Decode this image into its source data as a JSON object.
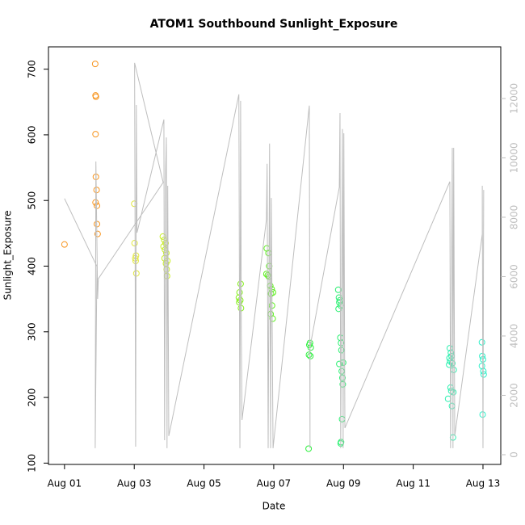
{
  "chart_data": {
    "type": "scatter",
    "title": "ATOM1 Southbound Sunlight_Exposure",
    "x_label": "Date",
    "y_label": "Sunlight_Exposure",
    "xlim": [
      0.54,
      13.51
    ],
    "ylim": [
      98,
      734
    ],
    "y2lim": [
      -327,
      13740
    ],
    "xticks": [
      {
        "value": 1,
        "label": "Aug 01"
      },
      {
        "value": 3,
        "label": "Aug 03"
      },
      {
        "value": 5,
        "label": "Aug 05"
      },
      {
        "value": 7,
        "label": "Aug 07"
      },
      {
        "value": 9,
        "label": "Aug 09"
      },
      {
        "value": 11,
        "label": "Aug 11"
      },
      {
        "value": 13,
        "label": "Aug 13"
      }
    ],
    "yticks": [
      100,
      200,
      300,
      400,
      500,
      600,
      700
    ],
    "y2ticks": [
      0,
      2000,
      4000,
      6000,
      8000,
      10000,
      12000
    ],
    "series": [
      {
        "color": "#f7941d",
        "x": [
          1.0,
          1.88,
          1.89,
          1.9,
          1.89,
          1.9,
          1.92,
          1.89,
          1.93,
          1.93,
          1.95
        ],
        "values": [
          433,
          708,
          660,
          658,
          601,
          536,
          516,
          497,
          492,
          464,
          449
        ]
      },
      {
        "color": "#e0e640",
        "x": [
          3.0,
          3.01,
          3.05,
          3.03,
          3.04,
          3.06
        ],
        "values": [
          495,
          435,
          416,
          412,
          408,
          389
        ]
      },
      {
        "color": "#c8f01e",
        "x": [
          3.82,
          3.86,
          3.9,
          3.84,
          3.88,
          3.92,
          3.87,
          3.95,
          3.91,
          3.93,
          3.94
        ],
        "values": [
          445,
          440,
          435,
          430,
          425,
          420,
          412,
          408,
          404,
          395,
          385
        ]
      },
      {
        "color": "#84f01a",
        "x": [
          6.05,
          6.02,
          6.0,
          6.04,
          6.01,
          6.06
        ],
        "values": [
          373,
          360,
          352,
          348,
          345,
          336
        ]
      },
      {
        "color": "#5ef020",
        "x": [
          6.8,
          6.85,
          6.87,
          6.79,
          6.83,
          6.86,
          6.9,
          6.94,
          6.98,
          6.92,
          6.95,
          6.91,
          6.97
        ],
        "values": [
          427,
          420,
          400,
          388,
          386,
          384,
          370,
          365,
          360,
          358,
          340,
          327,
          320
        ]
      },
      {
        "color": "#30f040",
        "x": [
          8.04,
          8.02,
          8.06,
          8.01,
          8.05,
          8.0
        ],
        "values": [
          283,
          280,
          276,
          265,
          263,
          122
        ]
      },
      {
        "color": "#28f070",
        "x": [
          8.85,
          8.87,
          8.9,
          8.88,
          8.92,
          8.86,
          8.91,
          8.93,
          8.94,
          8.99,
          8.88,
          8.95,
          8.97,
          8.98,
          8.96,
          8.93,
          8.92
        ],
        "values": [
          364,
          352,
          348,
          345,
          340,
          335,
          291,
          283,
          272,
          253,
          251,
          240,
          230,
          220,
          167,
          132,
          130
        ]
      },
      {
        "color": "#2ef0b0",
        "x": [
          12.05,
          12.08,
          12.1,
          12.04,
          12.06,
          12.12,
          12.03,
          12.16,
          12.07,
          12.09,
          12.15,
          12.0,
          12.11,
          12.14
        ],
        "values": [
          275,
          268,
          263,
          260,
          255,
          252,
          250,
          242,
          215,
          210,
          208,
          198,
          187,
          139
        ]
      },
      {
        "color": "#2ef0c8",
        "x": [
          12.97,
          12.98,
          13.0,
          12.97,
          13.01,
          13.02,
          12.99
        ],
        "values": [
          284,
          263,
          258,
          248,
          240,
          235,
          174
        ]
      },
      {
        "type": "line",
        "axis": "y2",
        "color": "#bebebe",
        "x": [
          1.0,
          1.93,
          1.88,
          1.9,
          1.95,
          1.97,
          3.83,
          3.01,
          3.04,
          3.06,
          3.08,
          3.85,
          3.87,
          3.9,
          3.92,
          3.94,
          3.96,
          3.99,
          6.0,
          6.03,
          6.05,
          6.07,
          6.09,
          6.79,
          6.81,
          6.84,
          6.88,
          6.91,
          6.93,
          6.98,
          8.02,
          8.04,
          8.04,
          8.88,
          8.9,
          8.92,
          8.97,
          8.99,
          9.01,
          9.04,
          12.05,
          12.07,
          12.12,
          12.14,
          12.16,
          12.19,
          12.98,
          12.98,
          13.0,
          13.02
        ],
        "values": [
          8630,
          6340,
          220,
          9880,
          5250,
          5930,
          9170,
          13200,
          270,
          11780,
          7480,
          11290,
          490,
          9610,
          10690,
          220,
          9060,
          630,
          12140,
          220,
          11920,
          4220,
          1170,
          7920,
          9800,
          220,
          10480,
          220,
          8650,
          220,
          11760,
          220,
          3620,
          9010,
          11510,
          220,
          10970,
          220,
          10830,
          900,
          9200,
          220,
          10340,
          220,
          10340,
          630,
          7430,
          9060,
          220,
          8920
        ]
      }
    ]
  }
}
